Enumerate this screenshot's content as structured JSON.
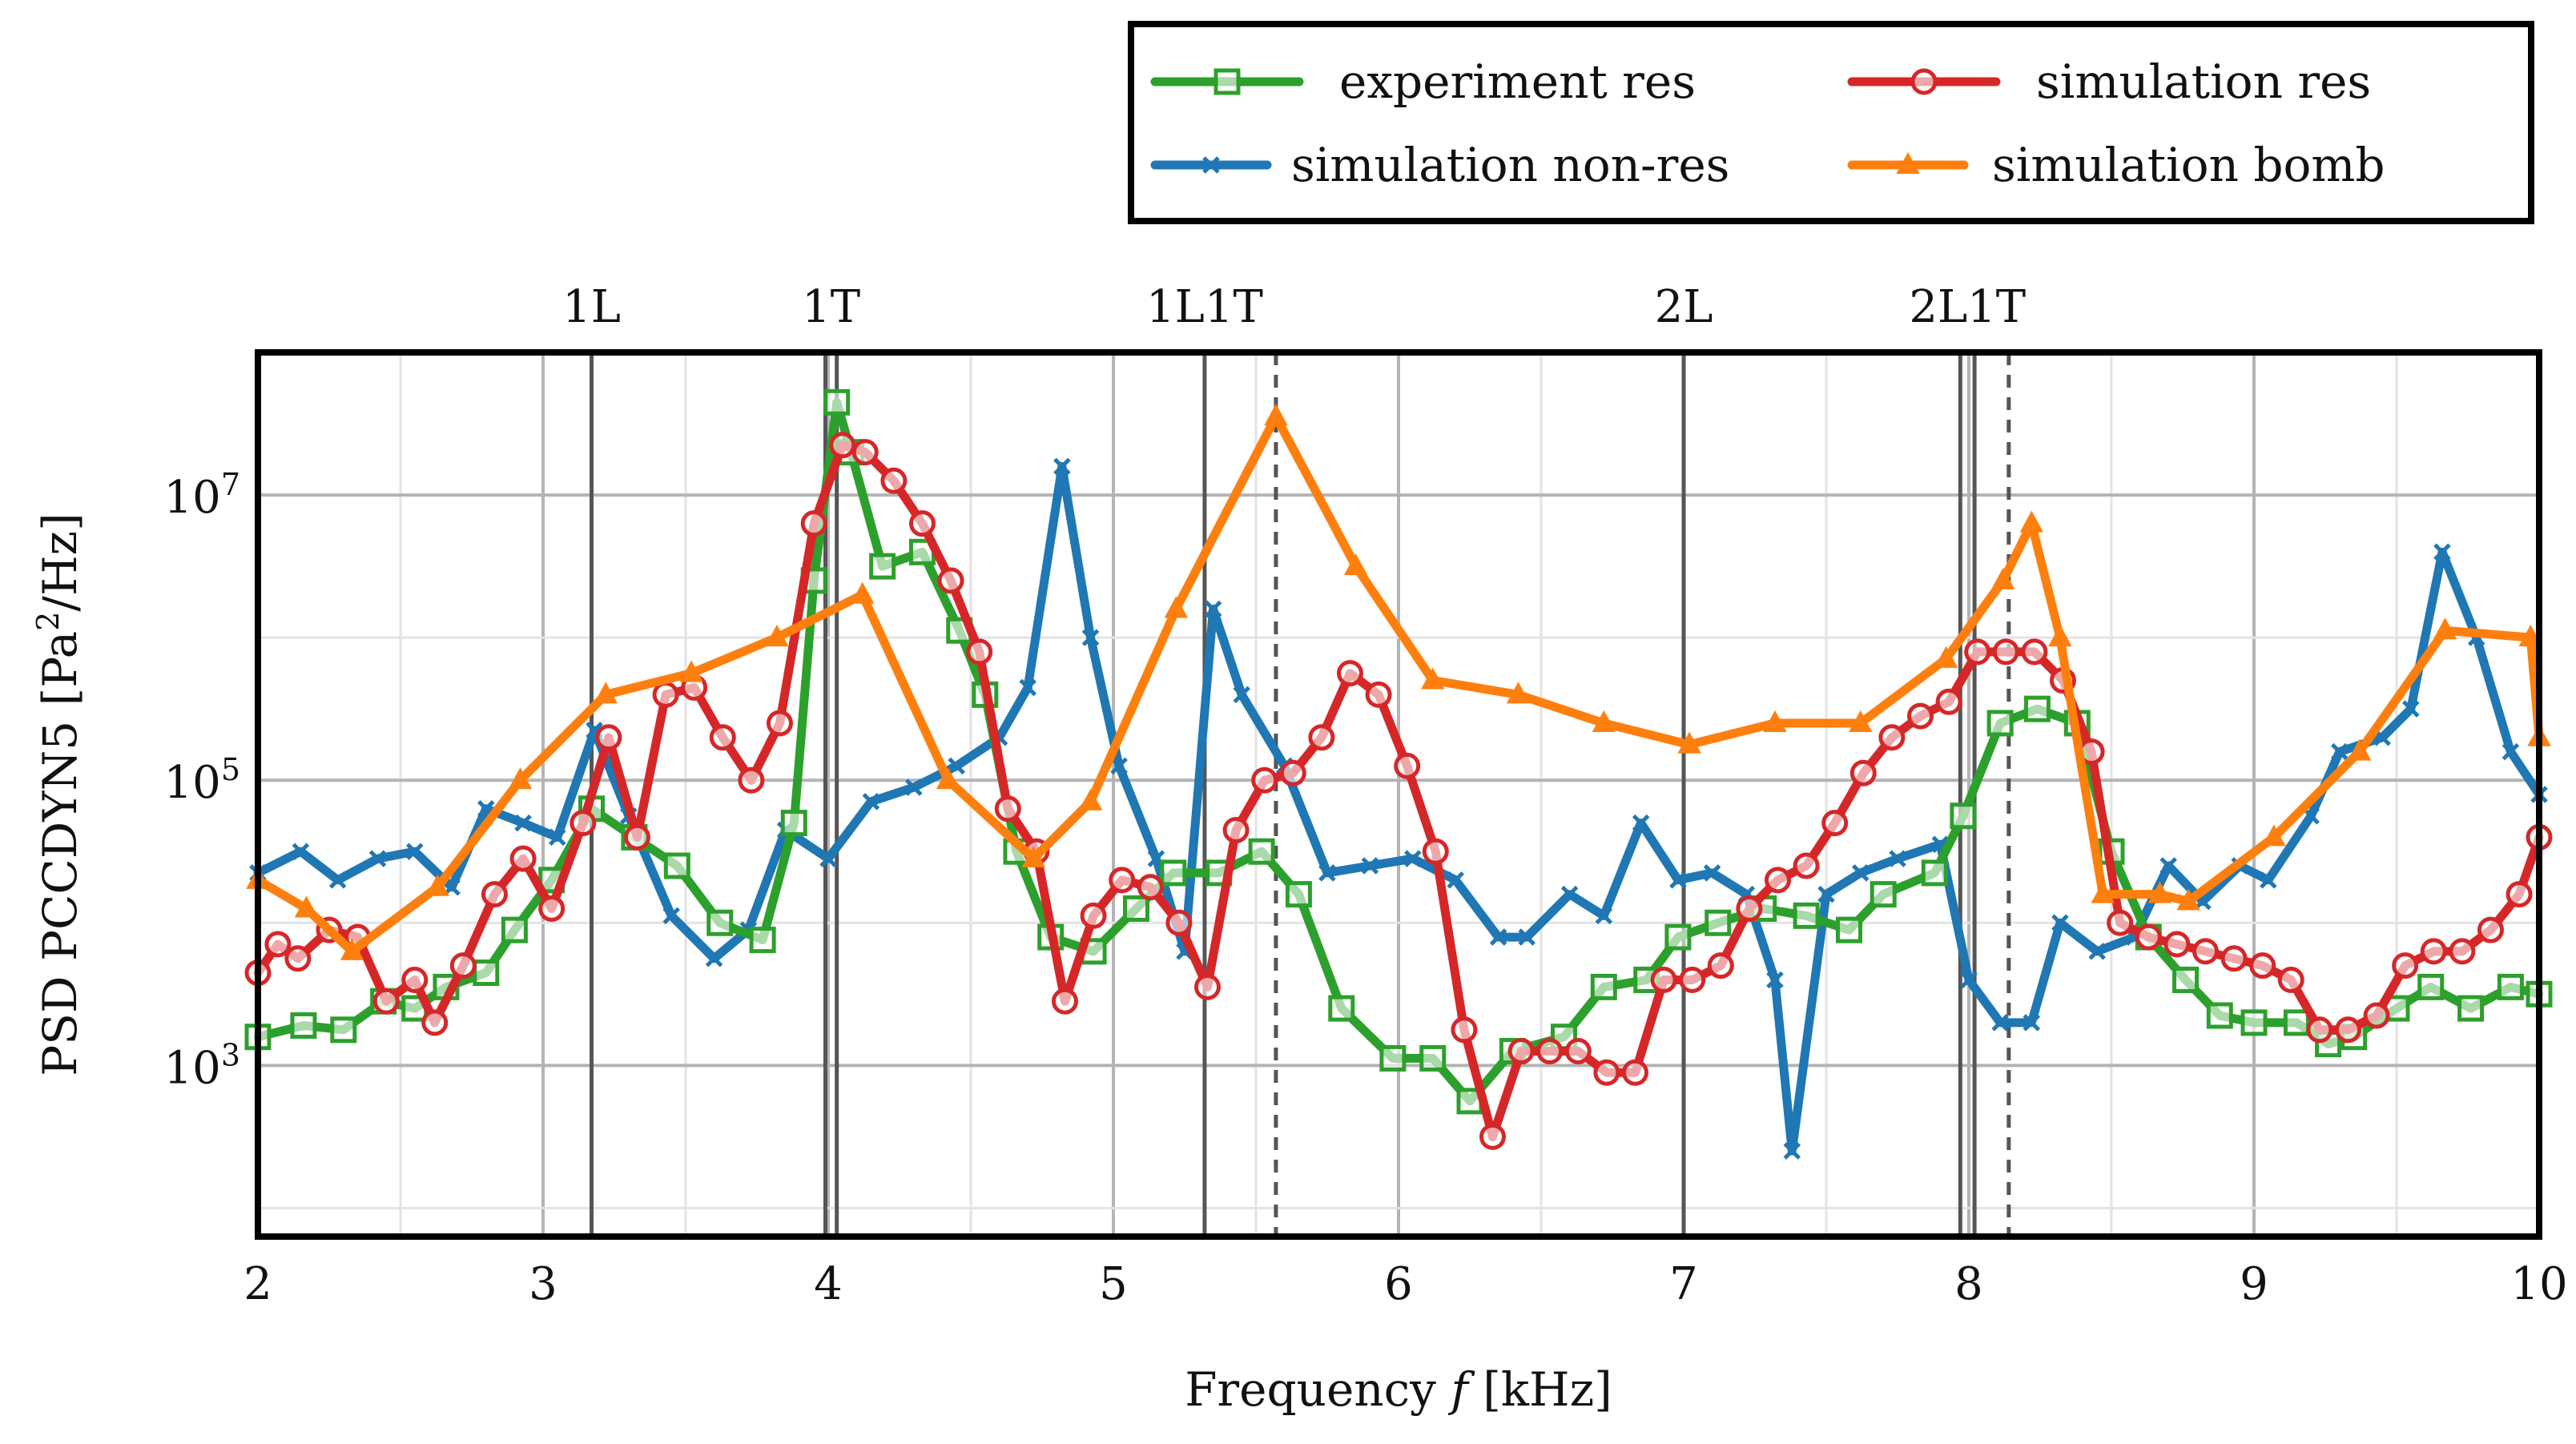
{
  "chart_data": {
    "type": "line",
    "title": "",
    "xlabel": "Frequency",
    "xlabel_symbol": "f",
    "xlabel_unit": "[kHz]",
    "ylabel": "PSD PCCDYN5 [Pa",
    "ylabel_sup": "2",
    "ylabel_tail": "/Hz]",
    "xlim": [
      2,
      10
    ],
    "ylim_log10": [
      1.8,
      8.0
    ],
    "yscale": "log",
    "grid": true,
    "legend_position": "top-right, above plot",
    "xticks": [
      {
        "value": 2,
        "label": "2"
      },
      {
        "value": 3,
        "label": "3"
      },
      {
        "value": 4,
        "label": "4"
      },
      {
        "value": 5,
        "label": "5"
      },
      {
        "value": 6,
        "label": "6"
      },
      {
        "value": 7,
        "label": "7"
      },
      {
        "value": 8,
        "label": "8"
      },
      {
        "value": 9,
        "label": "9"
      },
      {
        "value": 10,
        "label": "10"
      }
    ],
    "yticks": [
      {
        "exp": 3,
        "base": "10",
        "sup": "3"
      },
      {
        "exp": 5,
        "base": "10",
        "sup": "5"
      },
      {
        "exp": 7,
        "base": "10",
        "sup": "7"
      }
    ],
    "modes": [
      {
        "label": "1L",
        "freqs": [
          3.17
        ]
      },
      {
        "label": "1T",
        "freqs": [
          3.99,
          4.03
        ]
      },
      {
        "label": "1L1T",
        "freqs": [
          5.32
        ]
      },
      {
        "label": "2L",
        "freqs": [
          7.0
        ]
      },
      {
        "label": "2L1T",
        "freqs": [
          7.97,
          8.02
        ]
      }
    ],
    "dashed_lines": [
      5.57,
      8.14
    ],
    "series": [
      {
        "name": "experiment res",
        "color": "#2ca02c",
        "marker": "square",
        "points": [
          [
            2.0,
            3.2
          ],
          [
            2.16,
            3.28
          ],
          [
            2.3,
            3.25
          ],
          [
            2.44,
            3.45
          ],
          [
            2.55,
            3.4
          ],
          [
            2.66,
            3.55
          ],
          [
            2.8,
            3.65
          ],
          [
            2.9,
            3.95
          ],
          [
            3.03,
            4.3
          ],
          [
            3.17,
            4.8
          ],
          [
            3.32,
            4.6
          ],
          [
            3.47,
            4.4
          ],
          [
            3.62,
            4.0
          ],
          [
            3.77,
            3.88
          ],
          [
            3.88,
            4.7
          ],
          [
            3.95,
            6.4
          ],
          [
            4.03,
            7.65
          ],
          [
            4.08,
            7.3
          ],
          [
            4.19,
            6.5
          ],
          [
            4.33,
            6.6
          ],
          [
            4.46,
            6.05
          ],
          [
            4.55,
            5.6
          ],
          [
            4.66,
            4.5
          ],
          [
            4.78,
            3.9
          ],
          [
            4.93,
            3.8
          ],
          [
            5.08,
            4.1
          ],
          [
            5.21,
            4.35
          ],
          [
            5.37,
            4.35
          ],
          [
            5.52,
            4.5
          ],
          [
            5.65,
            4.2
          ],
          [
            5.8,
            3.4
          ],
          [
            5.98,
            3.05
          ],
          [
            6.12,
            3.05
          ],
          [
            6.25,
            2.75
          ],
          [
            6.4,
            3.1
          ],
          [
            6.58,
            3.2
          ],
          [
            6.72,
            3.55
          ],
          [
            6.87,
            3.6
          ],
          [
            6.98,
            3.9
          ],
          [
            7.12,
            4.0
          ],
          [
            7.28,
            4.1
          ],
          [
            7.43,
            4.05
          ],
          [
            7.58,
            3.95
          ],
          [
            7.7,
            4.2
          ],
          [
            7.88,
            4.35
          ],
          [
            7.98,
            4.75
          ],
          [
            8.11,
            5.4
          ],
          [
            8.24,
            5.5
          ],
          [
            8.38,
            5.4
          ],
          [
            8.5,
            4.5
          ],
          [
            8.63,
            3.9
          ],
          [
            8.76,
            3.6
          ],
          [
            8.88,
            3.35
          ],
          [
            9.0,
            3.3
          ],
          [
            9.15,
            3.3
          ],
          [
            9.26,
            3.15
          ],
          [
            9.35,
            3.2
          ],
          [
            9.5,
            3.4
          ],
          [
            9.62,
            3.55
          ],
          [
            9.76,
            3.4
          ],
          [
            9.9,
            3.55
          ],
          [
            10.0,
            3.5
          ]
        ]
      },
      {
        "name": "simulation res",
        "color": "#d62728",
        "marker": "circle",
        "points": [
          [
            2.0,
            3.65
          ],
          [
            2.07,
            3.85
          ],
          [
            2.14,
            3.75
          ],
          [
            2.25,
            3.95
          ],
          [
            2.35,
            3.9
          ],
          [
            2.45,
            3.45
          ],
          [
            2.55,
            3.6
          ],
          [
            2.62,
            3.3
          ],
          [
            2.72,
            3.7
          ],
          [
            2.83,
            4.2
          ],
          [
            2.93,
            4.45
          ],
          [
            3.03,
            4.1
          ],
          [
            3.14,
            4.7
          ],
          [
            3.23,
            5.3
          ],
          [
            3.33,
            4.6
          ],
          [
            3.43,
            5.6
          ],
          [
            3.53,
            5.65
          ],
          [
            3.63,
            5.3
          ],
          [
            3.73,
            5.0
          ],
          [
            3.83,
            5.4
          ],
          [
            3.95,
            6.8
          ],
          [
            4.05,
            7.35
          ],
          [
            4.13,
            7.3
          ],
          [
            4.23,
            7.1
          ],
          [
            4.33,
            6.8
          ],
          [
            4.43,
            6.4
          ],
          [
            4.53,
            5.9
          ],
          [
            4.63,
            4.8
          ],
          [
            4.73,
            4.5
          ],
          [
            4.83,
            3.45
          ],
          [
            4.93,
            4.05
          ],
          [
            5.03,
            4.3
          ],
          [
            5.13,
            4.25
          ],
          [
            5.23,
            4.0
          ],
          [
            5.33,
            3.55
          ],
          [
            5.43,
            4.65
          ],
          [
            5.53,
            5.0
          ],
          [
            5.63,
            5.05
          ],
          [
            5.73,
            5.3
          ],
          [
            5.83,
            5.75
          ],
          [
            5.93,
            5.6
          ],
          [
            6.03,
            5.1
          ],
          [
            6.13,
            4.5
          ],
          [
            6.23,
            3.25
          ],
          [
            6.33,
            2.5
          ],
          [
            6.43,
            3.1
          ],
          [
            6.53,
            3.1
          ],
          [
            6.63,
            3.1
          ],
          [
            6.73,
            2.95
          ],
          [
            6.83,
            2.95
          ],
          [
            6.93,
            3.6
          ],
          [
            7.03,
            3.6
          ],
          [
            7.13,
            3.7
          ],
          [
            7.23,
            4.1
          ],
          [
            7.33,
            4.3
          ],
          [
            7.43,
            4.4
          ],
          [
            7.53,
            4.7
          ],
          [
            7.63,
            5.05
          ],
          [
            7.73,
            5.3
          ],
          [
            7.83,
            5.45
          ],
          [
            7.93,
            5.55
          ],
          [
            8.03,
            5.9
          ],
          [
            8.13,
            5.9
          ],
          [
            8.23,
            5.9
          ],
          [
            8.33,
            5.7
          ],
          [
            8.43,
            5.2
          ],
          [
            8.53,
            4.0
          ],
          [
            8.63,
            3.9
          ],
          [
            8.73,
            3.85
          ],
          [
            8.83,
            3.8
          ],
          [
            8.93,
            3.75
          ],
          [
            9.03,
            3.7
          ],
          [
            9.13,
            3.6
          ],
          [
            9.23,
            3.25
          ],
          [
            9.33,
            3.25
          ],
          [
            9.43,
            3.35
          ],
          [
            9.53,
            3.7
          ],
          [
            9.63,
            3.8
          ],
          [
            9.73,
            3.8
          ],
          [
            9.83,
            3.95
          ],
          [
            9.93,
            4.2
          ],
          [
            10.0,
            4.6
          ]
        ]
      },
      {
        "name": "simulation non-res",
        "color": "#1f77b4",
        "marker": "x",
        "points": [
          [
            2.0,
            4.35
          ],
          [
            2.15,
            4.5
          ],
          [
            2.28,
            4.3
          ],
          [
            2.42,
            4.45
          ],
          [
            2.55,
            4.5
          ],
          [
            2.68,
            4.25
          ],
          [
            2.8,
            4.8
          ],
          [
            2.93,
            4.7
          ],
          [
            3.05,
            4.6
          ],
          [
            3.18,
            5.35
          ],
          [
            3.3,
            4.75
          ],
          [
            3.45,
            4.05
          ],
          [
            3.6,
            3.75
          ],
          [
            3.72,
            3.95
          ],
          [
            3.85,
            4.65
          ],
          [
            4.0,
            4.45
          ],
          [
            4.15,
            4.85
          ],
          [
            4.3,
            4.95
          ],
          [
            4.45,
            5.1
          ],
          [
            4.6,
            5.3
          ],
          [
            4.7,
            5.65
          ],
          [
            4.82,
            7.2
          ],
          [
            4.92,
            6.0
          ],
          [
            5.02,
            5.1
          ],
          [
            5.15,
            4.45
          ],
          [
            5.25,
            3.8
          ],
          [
            5.35,
            6.2
          ],
          [
            5.45,
            5.6
          ],
          [
            5.6,
            5.1
          ],
          [
            5.75,
            4.35
          ],
          [
            5.9,
            4.4
          ],
          [
            6.05,
            4.45
          ],
          [
            6.2,
            4.3
          ],
          [
            6.35,
            3.9
          ],
          [
            6.45,
            3.9
          ],
          [
            6.6,
            4.2
          ],
          [
            6.72,
            4.05
          ],
          [
            6.85,
            4.7
          ],
          [
            6.98,
            4.3
          ],
          [
            7.1,
            4.35
          ],
          [
            7.22,
            4.2
          ],
          [
            7.32,
            3.6
          ],
          [
            7.38,
            2.4
          ],
          [
            7.5,
            4.2
          ],
          [
            7.62,
            4.35
          ],
          [
            7.75,
            4.45
          ],
          [
            7.9,
            4.55
          ],
          [
            8.0,
            3.6
          ],
          [
            8.11,
            3.3
          ],
          [
            8.22,
            3.3
          ],
          [
            8.32,
            4.0
          ],
          [
            8.45,
            3.8
          ],
          [
            8.58,
            3.9
          ],
          [
            8.7,
            4.4
          ],
          [
            8.82,
            4.15
          ],
          [
            8.95,
            4.4
          ],
          [
            9.05,
            4.3
          ],
          [
            9.2,
            4.75
          ],
          [
            9.3,
            5.2
          ],
          [
            9.45,
            5.3
          ],
          [
            9.55,
            5.5
          ],
          [
            9.66,
            6.6
          ],
          [
            9.78,
            6.0
          ],
          [
            9.9,
            5.2
          ],
          [
            10.0,
            4.9
          ]
        ]
      },
      {
        "name": "simulation bomb",
        "color": "#ff7f0e",
        "marker": "triangle",
        "points": [
          [
            2.0,
            4.3
          ],
          [
            2.17,
            4.1
          ],
          [
            2.33,
            3.8
          ],
          [
            2.63,
            4.25
          ],
          [
            2.92,
            5.0
          ],
          [
            3.22,
            5.6
          ],
          [
            3.52,
            5.75
          ],
          [
            3.82,
            6.0
          ],
          [
            4.12,
            6.3
          ],
          [
            4.42,
            5.0
          ],
          [
            4.72,
            4.45
          ],
          [
            4.92,
            4.85
          ],
          [
            5.22,
            6.2
          ],
          [
            5.57,
            7.55
          ],
          [
            5.85,
            6.5
          ],
          [
            6.12,
            5.7
          ],
          [
            6.42,
            5.6
          ],
          [
            6.72,
            5.4
          ],
          [
            7.02,
            5.25
          ],
          [
            7.32,
            5.4
          ],
          [
            7.62,
            5.4
          ],
          [
            7.92,
            5.85
          ],
          [
            8.12,
            6.4
          ],
          [
            8.22,
            6.8
          ],
          [
            8.32,
            6.0
          ],
          [
            8.47,
            4.2
          ],
          [
            8.67,
            4.2
          ],
          [
            8.77,
            4.15
          ],
          [
            9.07,
            4.6
          ],
          [
            9.37,
            5.2
          ],
          [
            9.67,
            6.05
          ],
          [
            9.97,
            6.0
          ],
          [
            10.0,
            5.3
          ]
        ]
      }
    ]
  }
}
